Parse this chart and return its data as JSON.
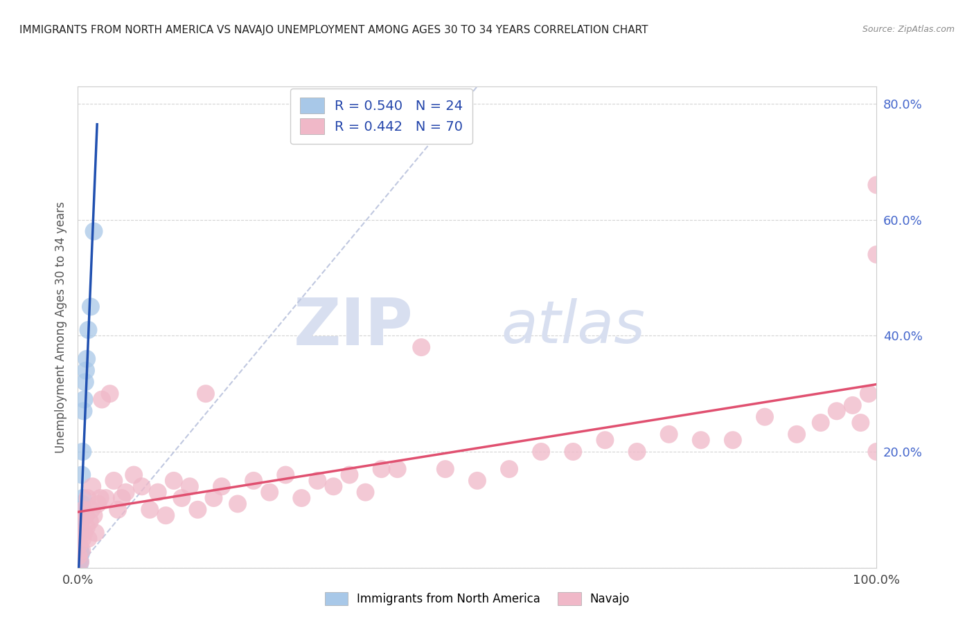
{
  "title": "IMMIGRANTS FROM NORTH AMERICA VS NAVAJO UNEMPLOYMENT AMONG AGES 30 TO 34 YEARS CORRELATION CHART",
  "source": "Source: ZipAtlas.com",
  "ylabel": "Unemployment Among Ages 30 to 34 years",
  "xlim": [
    0,
    1.0
  ],
  "ylim": [
    0,
    0.83
  ],
  "ytick_positions": [
    0.0,
    0.2,
    0.4,
    0.6,
    0.8
  ],
  "ytick_labels_left": [
    "",
    "",
    "",
    "",
    ""
  ],
  "ytick_labels_right": [
    "",
    "20.0%",
    "40.0%",
    "60.0%",
    "80.0%"
  ],
  "xtick_positions": [
    0.0,
    0.2,
    0.4,
    0.6,
    0.8,
    1.0
  ],
  "xtick_labels": [
    "0.0%",
    "",
    "",
    "",
    "",
    "100.0%"
  ],
  "legend_line1": "R = 0.540   N = 24",
  "legend_line2": "R = 0.442   N = 70",
  "series1_label": "Immigrants from North America",
  "series2_label": "Navajo",
  "color1": "#a8c8e8",
  "color2": "#f0b8c8",
  "line1_color": "#2050b0",
  "line2_color": "#e05070",
  "dashline_color": "#c0c8e0",
  "background_color": "#ffffff",
  "grid_color": "#d0d0d0",
  "watermark_text": "ZIPatlas",
  "scatter1_x": [
    0.001,
    0.001,
    0.002,
    0.002,
    0.002,
    0.002,
    0.003,
    0.003,
    0.003,
    0.004,
    0.004,
    0.004,
    0.005,
    0.005,
    0.006,
    0.006,
    0.007,
    0.008,
    0.009,
    0.01,
    0.011,
    0.013,
    0.016,
    0.02
  ],
  "scatter1_y": [
    0.01,
    0.02,
    0.005,
    0.015,
    0.02,
    0.035,
    0.01,
    0.03,
    0.06,
    0.025,
    0.1,
    0.08,
    0.11,
    0.16,
    0.12,
    0.2,
    0.27,
    0.29,
    0.32,
    0.34,
    0.36,
    0.41,
    0.45,
    0.58
  ],
  "scatter2_x": [
    0.001,
    0.002,
    0.003,
    0.004,
    0.005,
    0.006,
    0.007,
    0.008,
    0.01,
    0.011,
    0.012,
    0.013,
    0.015,
    0.017,
    0.018,
    0.02,
    0.022,
    0.025,
    0.028,
    0.03,
    0.035,
    0.04,
    0.045,
    0.05,
    0.055,
    0.06,
    0.07,
    0.08,
    0.09,
    0.1,
    0.11,
    0.12,
    0.13,
    0.14,
    0.15,
    0.16,
    0.17,
    0.18,
    0.2,
    0.22,
    0.24,
    0.26,
    0.28,
    0.3,
    0.32,
    0.34,
    0.36,
    0.38,
    0.4,
    0.43,
    0.46,
    0.5,
    0.54,
    0.58,
    0.62,
    0.66,
    0.7,
    0.74,
    0.78,
    0.82,
    0.86,
    0.9,
    0.93,
    0.95,
    0.97,
    0.98,
    0.99,
    1.0,
    1.0,
    1.0
  ],
  "scatter2_y": [
    0.02,
    0.04,
    0.01,
    0.08,
    0.03,
    0.05,
    0.1,
    0.06,
    0.09,
    0.07,
    0.12,
    0.05,
    0.08,
    0.1,
    0.14,
    0.09,
    0.06,
    0.11,
    0.12,
    0.29,
    0.12,
    0.3,
    0.15,
    0.1,
    0.12,
    0.13,
    0.16,
    0.14,
    0.1,
    0.13,
    0.09,
    0.15,
    0.12,
    0.14,
    0.1,
    0.3,
    0.12,
    0.14,
    0.11,
    0.15,
    0.13,
    0.16,
    0.12,
    0.15,
    0.14,
    0.16,
    0.13,
    0.17,
    0.17,
    0.38,
    0.17,
    0.15,
    0.17,
    0.2,
    0.2,
    0.22,
    0.2,
    0.23,
    0.22,
    0.22,
    0.26,
    0.23,
    0.25,
    0.27,
    0.28,
    0.25,
    0.3,
    0.2,
    0.54,
    0.66
  ]
}
